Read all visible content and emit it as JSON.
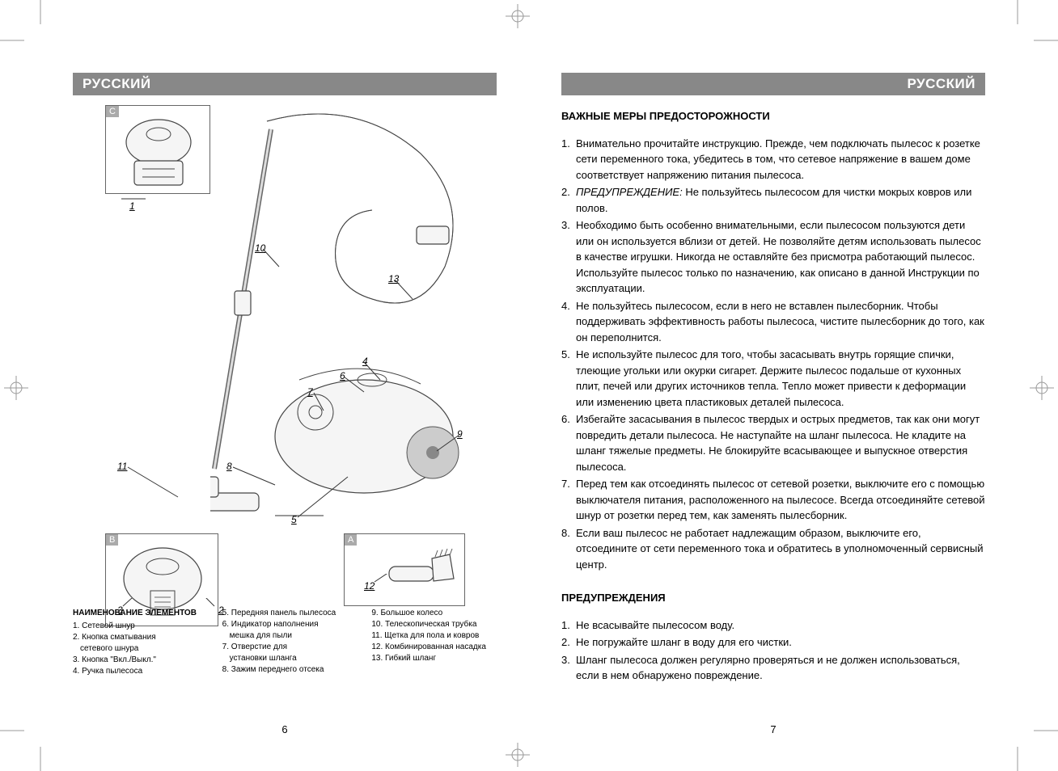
{
  "header_left": "РУССКИЙ",
  "header_right": "РУССКИЙ",
  "page_num_left": "6",
  "page_num_right": "7",
  "diagram": {
    "box_c": "C",
    "box_b": "B",
    "box_a": "A",
    "callouts": {
      "n1": "1",
      "n2": "2",
      "n3": "3",
      "n4": "4",
      "n5": "5",
      "n6": "6",
      "n7": "7",
      "n8": "8",
      "n9": "9",
      "n10": "10",
      "n11": "11",
      "n12": "12",
      "n13": "13"
    }
  },
  "legend": {
    "title": "НАИМЕНОВАНИЕ ЭЛЕМЕНТОВ",
    "col1": [
      "1. Сетевой шнур",
      "2. Кнопка сматывания",
      "    сетевого шнура",
      "3. Кнопка \"Вкл./Выкл.\"",
      "4. Ручка пылесоса"
    ],
    "col2": [
      "5. Передняя панель пылесоса",
      "6. Индикатор наполнения",
      "    мешка для пыли",
      "7. Отверстие для",
      "    установки шланга",
      "8. Зажим переднего отсека"
    ],
    "col3": [
      "9. Большое колесо",
      "10. Телескопическая трубка",
      "11. Щетка для пола и ковров",
      "12. Комбинированная насадка",
      "13. Гибкий шланг"
    ]
  },
  "right": {
    "heading1": "ВАЖНЫЕ МЕРЫ ПРЕДОСТОРОЖНОСТИ",
    "items1": [
      {
        "n": "1.",
        "t": "Внимательно прочитайте инструкцию. Прежде, чем подключать пылесос к розетке сети переменного тока, убедитесь в том, что сетевое напряжение в вашем доме соответствует напряжению питания пылесоса."
      },
      {
        "n": "2.",
        "t": "<i>ПРЕДУПРЕЖДЕНИЕ:</i> Не пользуйтесь пылесосом для чистки мокрых ковров или полов."
      },
      {
        "n": "3.",
        "t": "Необходимо быть особенно внимательными, если пылесосом пользуются дети или он используется вблизи от детей. Не позволяйте детям использовать пылесос в качестве игрушки. Никогда не оставляйте без присмотра работающий пылесос. Используйте пылесос только по назначению, как описано в данной Инструкции по эксплуатации."
      },
      {
        "n": "4.",
        "t": "Не пользуйтесь пылесосом, если в него не вставлен пылесборник. Чтобы поддерживать эффективность работы пылесоса, чистите пылесборник до того, как он переполнится."
      },
      {
        "n": "5.",
        "t": "Не используйте пылесос для того, чтобы засасывать внутрь горящие спички, тлеющие угольки или окурки сигарет. Держите пылесос подальше от кухонных плит, печей или других источников тепла. Тепло может привести к деформации или изменению цвета пластиковых деталей пылесоса."
      },
      {
        "n": "6.",
        "t": "Избегайте засасывания в пылесос твердых и острых предметов, так как они могут повредить детали пылесоса. Не наступайте на шланг пылесоса. Не кладите на шланг тяжелые предметы. Не блокируйте всасывающее и выпускное отверстия пылесоса."
      },
      {
        "n": "7.",
        "t": "Перед тем как отсоединять пылесос от сетевой розетки, выключите его с помощью выключателя питания, расположенного на пылесосе. Всегда отсоединяйте сетевой шнур от розетки перед тем, как заменять пылесборник."
      },
      {
        "n": "8.",
        "t": "Если ваш пылесос не работает надлежащим образом, выключите его, отсоедините от сети переменного тока и обратитесь в уполномоченный сервисный центр."
      }
    ],
    "heading2": "ПРЕДУПРЕЖДЕНИЯ",
    "items2": [
      {
        "n": "1.",
        "t": "Не всасывайте пылесосом воду."
      },
      {
        "n": "2.",
        "t": "Не погружайте шланг в воду для его чистки."
      },
      {
        "n": "3.",
        "t": "Шланг пылесоса должен регулярно проверяться и не должен использоваться, если в нем обнаружено повреждение."
      }
    ]
  },
  "colors": {
    "header_bg": "#888888",
    "header_fg": "#ffffff",
    "text": "#000000",
    "box_border": "#666666",
    "label_bg": "#aaaaaa"
  }
}
